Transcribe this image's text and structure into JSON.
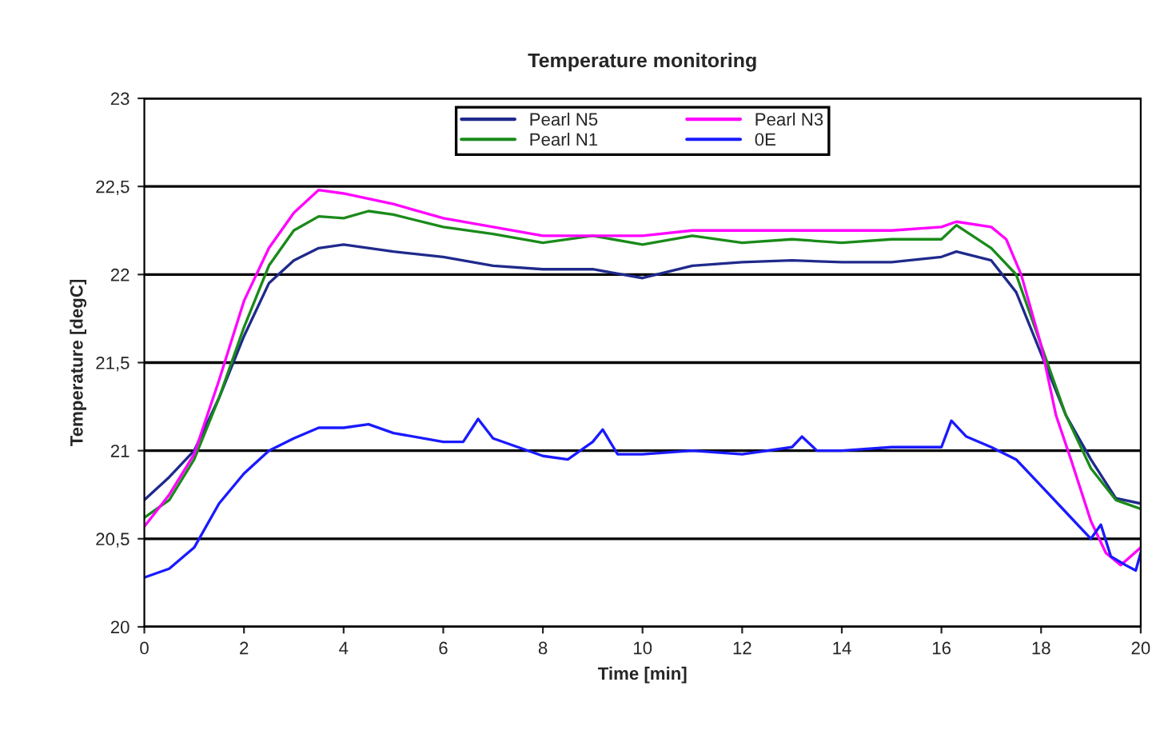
{
  "chart_data": {
    "type": "line",
    "title": "Temperature monitoring",
    "xlabel": "Time [min]",
    "ylabel": "Temperature [degC]",
    "xlim": [
      0,
      20
    ],
    "xticks": [
      0,
      2,
      4,
      6,
      8,
      10,
      12,
      14,
      16,
      18,
      20
    ],
    "ylim": [
      20,
      23
    ],
    "yticks": [
      {
        "value": 20,
        "label": "20"
      },
      {
        "value": 20.5,
        "label": "20,5"
      },
      {
        "value": 21,
        "label": "21"
      },
      {
        "value": 21.5,
        "label": "21,5"
      },
      {
        "value": 22,
        "label": "22"
      },
      {
        "value": 22.5,
        "label": "22,5"
      },
      {
        "value": 23,
        "label": "23"
      }
    ],
    "grid": "y",
    "legend": "top",
    "marker": "none",
    "line_style": "solid",
    "series": [
      {
        "name": "Pearl N5",
        "color": "#1f2a8c",
        "x": [
          0,
          0.5,
          1,
          1.5,
          2,
          2.5,
          3,
          3.5,
          4,
          5,
          6,
          7,
          8,
          9,
          10,
          11,
          12,
          13,
          14,
          15,
          16,
          16.3,
          17,
          17.5,
          18,
          18.5,
          19,
          19.5,
          20
        ],
        "values": [
          20.72,
          20.85,
          21.0,
          21.3,
          21.65,
          21.95,
          22.08,
          22.15,
          22.17,
          22.13,
          22.1,
          22.05,
          22.03,
          22.03,
          21.98,
          22.05,
          22.07,
          22.08,
          22.07,
          22.07,
          22.1,
          22.13,
          22.08,
          21.9,
          21.55,
          21.2,
          20.95,
          20.73,
          20.7
        ]
      },
      {
        "name": "Pearl N1",
        "color": "#1a8a1a",
        "x": [
          0,
          0.5,
          1,
          1.5,
          2,
          2.5,
          3,
          3.5,
          4,
          4.5,
          5,
          6,
          7,
          8,
          9,
          10,
          11,
          12,
          13,
          14,
          15,
          16,
          16.3,
          17,
          17.5,
          18,
          18.5,
          19,
          19.5,
          20
        ],
        "values": [
          20.62,
          20.72,
          20.95,
          21.3,
          21.7,
          22.05,
          22.25,
          22.33,
          22.32,
          22.36,
          22.34,
          22.27,
          22.23,
          22.18,
          22.22,
          22.17,
          22.22,
          22.18,
          22.2,
          22.18,
          22.2,
          22.2,
          22.28,
          22.15,
          22.0,
          21.6,
          21.2,
          20.9,
          20.72,
          20.67
        ]
      },
      {
        "name": "Pearl N3",
        "color": "#ff00ff",
        "x": [
          0,
          0.5,
          1,
          1.5,
          2,
          2.5,
          3,
          3.5,
          4,
          5,
          6,
          7,
          8,
          9,
          10,
          11,
          12,
          13,
          14,
          15,
          16,
          16.3,
          17,
          17.3,
          17.6,
          18,
          18.3,
          18.6,
          19,
          19.3,
          19.6,
          20
        ],
        "values": [
          20.57,
          20.75,
          20.98,
          21.4,
          21.85,
          22.15,
          22.35,
          22.48,
          22.46,
          22.4,
          22.32,
          22.27,
          22.22,
          22.22,
          22.22,
          22.25,
          22.25,
          22.25,
          22.25,
          22.25,
          22.27,
          22.3,
          22.27,
          22.2,
          22.0,
          21.6,
          21.2,
          20.95,
          20.6,
          20.42,
          20.35,
          20.45
        ]
      },
      {
        "name": "0E",
        "color": "#1a1aff",
        "x": [
          0,
          0.5,
          1,
          1.5,
          2,
          2.5,
          3,
          3.5,
          4,
          4.5,
          5,
          6,
          6.4,
          6.7,
          7,
          8,
          8.5,
          9,
          9.2,
          9.5,
          10,
          11,
          12,
          13,
          13.2,
          13.5,
          14,
          15,
          16,
          16.2,
          16.5,
          17,
          17.5,
          18,
          18.5,
          19,
          19.2,
          19.4,
          19.7,
          19.9,
          20
        ],
        "values": [
          20.28,
          20.33,
          20.45,
          20.7,
          20.87,
          21.0,
          21.07,
          21.13,
          21.13,
          21.15,
          21.1,
          21.05,
          21.05,
          21.18,
          21.07,
          20.97,
          20.95,
          21.05,
          21.12,
          20.98,
          20.98,
          21.0,
          20.98,
          21.02,
          21.08,
          21.0,
          21.0,
          21.02,
          21.02,
          21.17,
          21.08,
          21.02,
          20.95,
          20.8,
          20.65,
          20.5,
          20.58,
          20.4,
          20.35,
          20.32,
          20.42
        ]
      }
    ]
  }
}
